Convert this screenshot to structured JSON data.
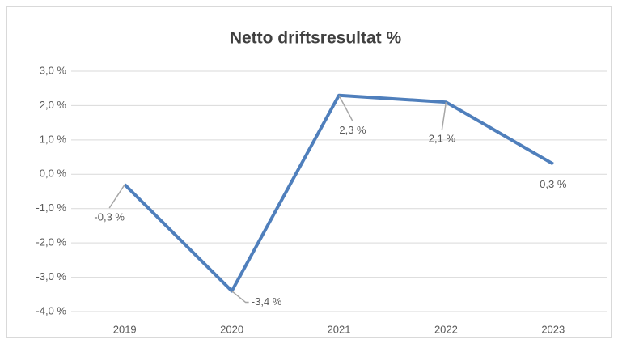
{
  "chart_data": {
    "type": "line",
    "title": "Netto driftsresultat %",
    "categories": [
      "2019",
      "2020",
      "2021",
      "2022",
      "2023"
    ],
    "series": [
      {
        "name": "Netto driftsresultat %",
        "color": "#4f7fbc",
        "values": [
          -0.3,
          -3.4,
          2.3,
          2.1,
          0.3
        ],
        "value_labels": [
          "-0,3 %",
          "-3,4 %",
          "2,3 %",
          "2,1 %",
          "0,3 %"
        ]
      }
    ],
    "ylim": [
      -4,
      3
    ],
    "yticks": [
      {
        "value": -4,
        "label": "-4,0 %"
      },
      {
        "value": -3,
        "label": "-3,0 %"
      },
      {
        "value": -2,
        "label": "-2,0 %"
      },
      {
        "value": -1,
        "label": "-1,0 %"
      },
      {
        "value": 0,
        "label": "0,0 %"
      },
      {
        "value": 1,
        "label": "1,0 %"
      },
      {
        "value": 2,
        "label": "2,0 %"
      },
      {
        "value": 3,
        "label": "3,0 %"
      }
    ],
    "grid": true
  }
}
